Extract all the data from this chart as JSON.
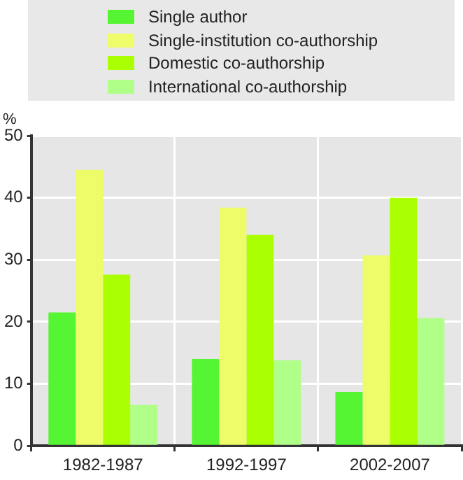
{
  "chart_data": {
    "type": "bar",
    "ylabel": "%",
    "categories": [
      "1982-1987",
      "1992-1997",
      "2002-2007"
    ],
    "series": [
      {
        "name": "Single author",
        "color": "#55f533",
        "values": [
          21.5,
          14,
          8.7
        ]
      },
      {
        "name": "Single-institution co-authorship",
        "color": "#eefc6a",
        "values": [
          44.5,
          38.4,
          30.7
        ]
      },
      {
        "name": "Domestic co-authorship",
        "color": "#aaff00",
        "values": [
          27.6,
          34,
          40
        ]
      },
      {
        "name": "International co-authorship",
        "color": "#b0ff88",
        "values": [
          6.6,
          13.8,
          20.6
        ]
      }
    ],
    "ylim": [
      0,
      50
    ],
    "yticks": [
      0,
      10,
      20,
      30,
      40,
      50
    ],
    "grid": true,
    "legend": "top"
  }
}
